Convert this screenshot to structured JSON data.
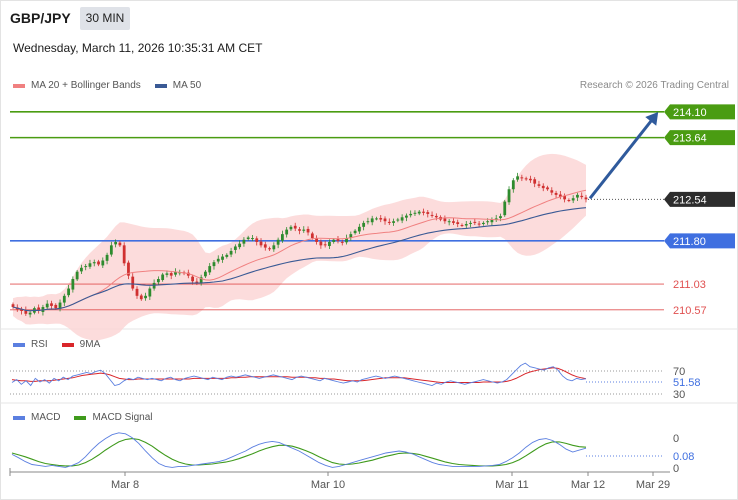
{
  "header": {
    "symbol": "GBP/JPY",
    "timeframe": "30 MIN",
    "datetime": "Wednesday, March 11, 2026 10:35:31 AM CET"
  },
  "legend": {
    "ma20_label": "MA 20 + Bollinger Bands",
    "ma50_label": "MA 50",
    "credit": "Research © 2026 Trading Central"
  },
  "colors": {
    "ma20": "#f08080",
    "ma50": "#3a5a95",
    "bands": "#fbd6d6",
    "resistance": "#4a9c12",
    "pivot": "#3f6fe0",
    "support": "#e05050",
    "price_tag": "#2d2d2d",
    "candle_up": "#2e8b2e",
    "candle_down": "#d03030",
    "rsi": "#5b7fe0",
    "rsi_ma": "#d9262a",
    "macd": "#5b7fe0",
    "macd_signal": "#3f9a1c",
    "arrow": "#2f5a9c"
  },
  "rsi_panel": {
    "rsi_label": "RSI",
    "ma_label": "9MA",
    "level_high": "70",
    "value": "51.58",
    "level_low": "30"
  },
  "macd_panel": {
    "macd_label": "MACD",
    "signal_label": "MACD Signal",
    "top": "0",
    "value": "0.08",
    "bottom": "0"
  },
  "chart_data": {
    "type": "candlestick",
    "title": "GBP/JPY",
    "timeframe": "30 MIN",
    "x_axis_labels": [
      "Mar 8",
      "Mar 10",
      "Mar 11",
      "Mar 12",
      "Mar 29"
    ],
    "ylim": [
      210.3,
      214.4
    ],
    "levels": [
      {
        "value": 214.1,
        "label": "214.10",
        "kind": "resistance"
      },
      {
        "value": 213.64,
        "label": "213.64",
        "kind": "resistance"
      },
      {
        "value": 212.54,
        "label": "212.54",
        "kind": "last_price"
      },
      {
        "value": 211.8,
        "label": "211.80",
        "kind": "pivot"
      },
      {
        "value": 211.03,
        "label": "211.03",
        "kind": "support"
      },
      {
        "value": 210.57,
        "label": "210.57",
        "kind": "support"
      }
    ],
    "projection": {
      "from": 212.54,
      "to": 214.1
    },
    "close_series": [
      210.62,
      210.58,
      210.55,
      210.5,
      210.52,
      210.6,
      210.55,
      210.62,
      210.68,
      210.64,
      210.6,
      210.7,
      210.82,
      210.95,
      211.12,
      211.25,
      211.32,
      211.35,
      211.4,
      211.42,
      211.38,
      211.45,
      211.55,
      211.72,
      211.78,
      211.72,
      211.4,
      211.18,
      210.95,
      210.82,
      210.76,
      210.82,
      210.95,
      211.05,
      211.12,
      211.2,
      211.22,
      211.18,
      211.25,
      211.24,
      211.22,
      211.18,
      211.08,
      211.05,
      211.15,
      211.25,
      211.35,
      211.42,
      211.48,
      211.52,
      211.55,
      211.62,
      211.7,
      211.75,
      211.82,
      211.86,
      211.85,
      211.78,
      211.72,
      211.68,
      211.65,
      211.72,
      211.82,
      211.92,
      212.0,
      212.05,
      212.02,
      211.98,
      212.0,
      211.95,
      211.85,
      211.78,
      211.72,
      211.72,
      211.78,
      211.82,
      211.8,
      211.78,
      211.85,
      211.92,
      211.98,
      212.05,
      212.12,
      212.15,
      212.2,
      212.2,
      212.18,
      212.15,
      212.12,
      212.15,
      212.18,
      212.22,
      212.25,
      212.28,
      212.3,
      212.32,
      212.3,
      212.28,
      212.25,
      212.22,
      212.18,
      212.15,
      212.15,
      212.12,
      212.1,
      212.08,
      212.1,
      212.12,
      212.12,
      212.1,
      212.12,
      212.15,
      212.18,
      212.2,
      212.24,
      212.5,
      212.72,
      212.88,
      212.95,
      212.92,
      212.9,
      212.88,
      212.82,
      212.78,
      212.74,
      212.72,
      212.66,
      212.62,
      212.58,
      212.54,
      212.52,
      212.56,
      212.62,
      212.58,
      212.54
    ],
    "rsi": {
      "levels": [
        70,
        30
      ],
      "last": 51.58,
      "rsi_values": [
        45,
        50,
        42,
        48,
        40,
        52,
        46,
        50,
        44,
        52,
        48,
        54,
        50,
        56,
        58,
        60,
        62,
        60,
        64,
        66,
        60,
        50,
        40,
        42,
        48,
        52,
        50,
        54,
        52,
        50,
        52,
        50,
        48,
        52,
        54,
        50,
        48,
        52,
        54,
        56,
        54,
        52,
        50,
        54,
        52,
        50,
        54,
        56,
        54,
        56,
        58,
        56,
        54,
        52,
        54,
        56,
        58,
        56,
        54,
        52,
        50,
        54,
        56,
        54,
        52,
        50,
        48,
        52,
        50,
        48,
        46,
        44,
        46,
        48,
        46,
        50,
        52,
        54,
        56,
        54,
        52,
        54,
        56,
        54,
        52,
        50,
        48,
        46,
        44,
        42,
        40,
        44,
        42,
        46,
        48,
        46,
        44,
        42,
        44,
        46,
        48,
        50,
        48,
        46,
        44,
        46,
        50,
        58,
        66,
        74,
        78,
        72,
        70,
        68,
        66,
        70,
        72,
        66,
        56,
        50,
        48,
        52,
        50,
        51.58
      ],
      "ma_values": [
        50,
        49,
        48,
        48,
        47,
        47,
        48,
        48,
        48,
        49,
        50,
        51,
        52,
        53,
        55,
        57,
        58,
        59,
        60,
        61,
        60,
        58,
        55,
        52,
        51,
        50,
        50,
        51,
        51,
        51,
        51,
        51,
        51,
        51,
        51,
        51,
        51,
        51,
        51,
        52,
        52,
        52,
        52,
        52,
        52,
        52,
        52,
        53,
        53,
        54,
        54,
        55,
        55,
        55,
        55,
        55,
        55,
        55,
        55,
        55,
        54,
        54,
        54,
        54,
        53,
        53,
        52,
        52,
        51,
        51,
        50,
        49,
        48,
        48,
        48,
        48,
        49,
        50,
        51,
        52,
        53,
        53,
        53,
        53,
        53,
        52,
        51,
        50,
        49,
        48,
        47,
        46,
        45,
        45,
        45,
        45,
        45,
        45,
        45,
        45,
        45,
        46,
        46,
        46,
        46,
        46,
        47,
        49,
        52,
        56,
        60,
        63,
        65,
        67,
        68,
        69,
        70,
        69,
        66,
        62,
        58,
        55,
        53,
        51.58
      ]
    },
    "macd": {
      "last": 0.08,
      "macd_values": [
        -0.05,
        -0.12,
        -0.2,
        -0.26,
        -0.28,
        -0.3,
        -0.28,
        -0.3,
        -0.32,
        -0.28,
        -0.22,
        -0.1,
        0.05,
        0.18,
        0.28,
        0.36,
        0.4,
        0.38,
        0.3,
        0.18,
        0.02,
        -0.12,
        -0.24,
        -0.3,
        -0.32,
        -0.3,
        -0.3,
        -0.28,
        -0.26,
        -0.24,
        -0.22,
        -0.2,
        -0.16,
        -0.1,
        -0.04,
        0.02,
        0.1,
        0.16,
        0.2,
        0.22,
        0.2,
        0.14,
        0.08,
        0.02,
        -0.06,
        -0.14,
        -0.22,
        -0.28,
        -0.32,
        -0.3,
        -0.26,
        -0.22,
        -0.18,
        -0.14,
        -0.1,
        -0.06,
        -0.02,
        0.0,
        0.02,
        0.0,
        -0.04,
        -0.1,
        -0.16,
        -0.22,
        -0.26,
        -0.28,
        -0.3,
        -0.3,
        -0.3,
        -0.3,
        -0.3,
        -0.29,
        -0.28,
        -0.26,
        -0.2,
        -0.12,
        -0.02,
        0.1,
        0.2,
        0.26,
        0.28,
        0.24,
        0.16,
        0.06,
        0.0,
        0.04,
        0.08
      ],
      "signal_values": [
        -0.02,
        -0.06,
        -0.1,
        -0.15,
        -0.2,
        -0.24,
        -0.26,
        -0.28,
        -0.29,
        -0.29,
        -0.27,
        -0.22,
        -0.15,
        -0.06,
        0.04,
        0.13,
        0.21,
        0.26,
        0.28,
        0.26,
        0.2,
        0.12,
        0.02,
        -0.07,
        -0.15,
        -0.21,
        -0.25,
        -0.27,
        -0.27,
        -0.26,
        -0.25,
        -0.23,
        -0.21,
        -0.18,
        -0.14,
        -0.09,
        -0.04,
        0.02,
        0.07,
        0.11,
        0.14,
        0.14,
        0.12,
        0.08,
        0.03,
        -0.03,
        -0.1,
        -0.16,
        -0.22,
        -0.25,
        -0.26,
        -0.25,
        -0.23,
        -0.2,
        -0.17,
        -0.13,
        -0.09,
        -0.06,
        -0.03,
        -0.02,
        -0.03,
        -0.05,
        -0.09,
        -0.13,
        -0.17,
        -0.21,
        -0.24,
        -0.26,
        -0.27,
        -0.28,
        -0.29,
        -0.29,
        -0.29,
        -0.28,
        -0.26,
        -0.22,
        -0.16,
        -0.08,
        0.01,
        0.1,
        0.17,
        0.21,
        0.21,
        0.18,
        0.14,
        0.11,
        0.1
      ]
    }
  }
}
